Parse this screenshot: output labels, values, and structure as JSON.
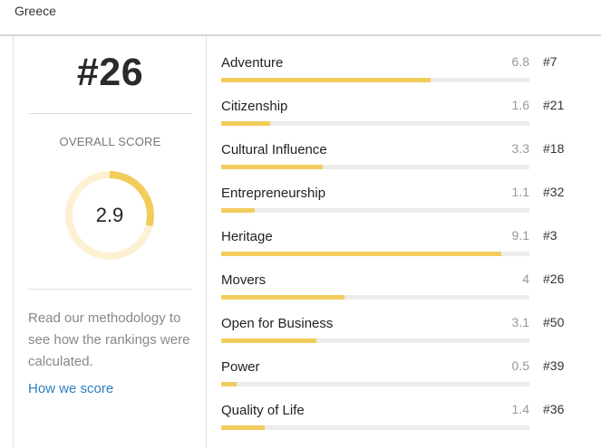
{
  "header": {
    "country": "Greece"
  },
  "summary": {
    "rank": "#26",
    "overall_label": "OVERALL SCORE",
    "overall_score": "2.9",
    "overall_score_value": 2.9,
    "score_max": 10,
    "methodology_text": "Read our methodology to see how the rankings were calculated.",
    "how_link": "How we score"
  },
  "colors": {
    "accent": "#f2cd5c",
    "donut_track": "#fdf0d3",
    "bar_track": "#ececec",
    "link": "#2d7fc1"
  },
  "metrics": [
    {
      "name": "Adventure",
      "score": "6.8",
      "value": 6.8,
      "rank": "#7"
    },
    {
      "name": "Citizenship",
      "score": "1.6",
      "value": 1.6,
      "rank": "#21"
    },
    {
      "name": "Cultural Influence",
      "score": "3.3",
      "value": 3.3,
      "rank": "#18"
    },
    {
      "name": "Entrepreneurship",
      "score": "1.1",
      "value": 1.1,
      "rank": "#32"
    },
    {
      "name": "Heritage",
      "score": "9.1",
      "value": 9.1,
      "rank": "#3"
    },
    {
      "name": "Movers",
      "score": "4",
      "value": 4,
      "rank": "#26"
    },
    {
      "name": "Open for Business",
      "score": "3.1",
      "value": 3.1,
      "rank": "#50"
    },
    {
      "name": "Power",
      "score": "0.5",
      "value": 0.5,
      "rank": "#39"
    },
    {
      "name": "Quality of Life",
      "score": "1.4",
      "value": 1.4,
      "rank": "#36"
    }
  ]
}
